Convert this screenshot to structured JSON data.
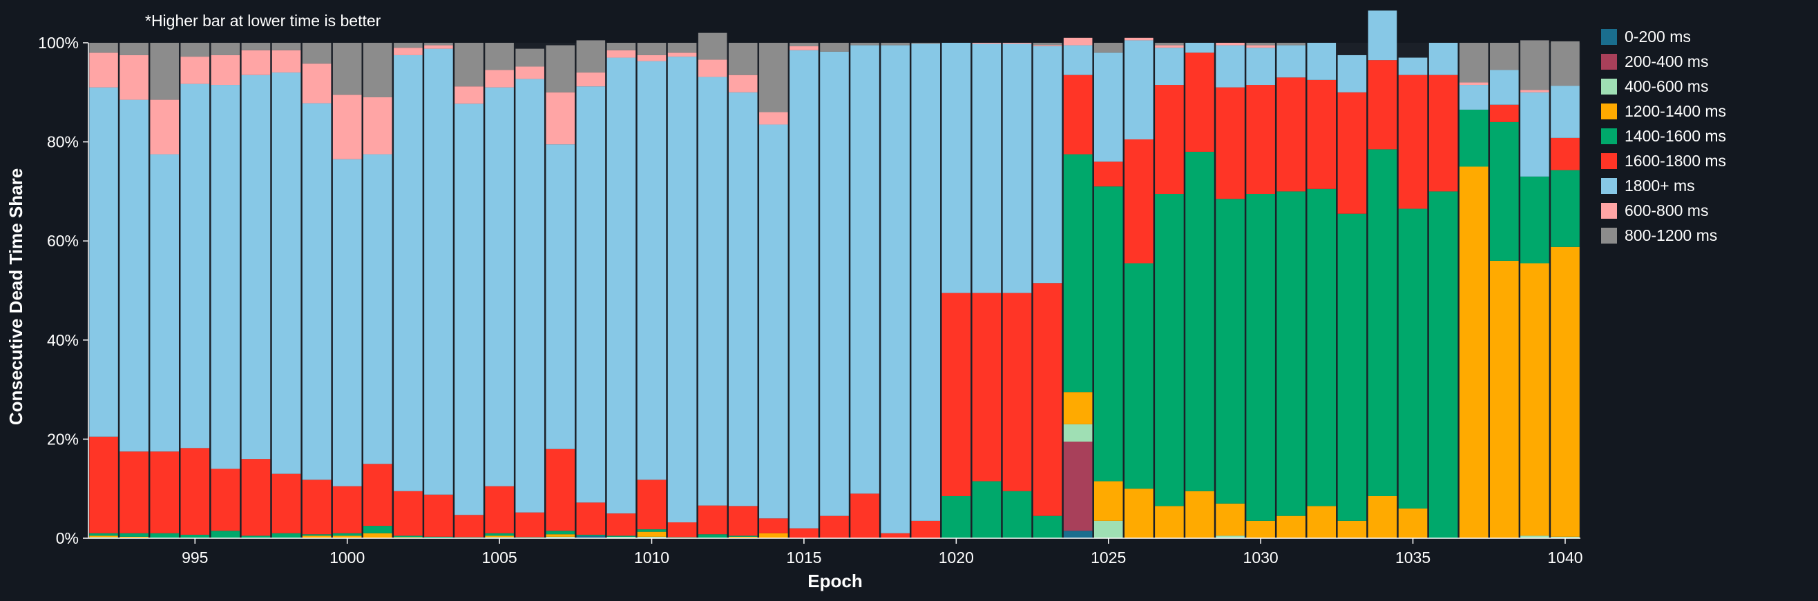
{
  "chart_data": {
    "type": "bar",
    "stacked": true,
    "annotation": "*Higher bar at lower time is better",
    "xlabel": "Epoch",
    "ylabel": "Consecutive Dead Time Share",
    "ylim": [
      0,
      100
    ],
    "y_ticks": [
      0,
      20,
      40,
      60,
      80,
      100
    ],
    "y_tick_labels": [
      "0%",
      "20%",
      "40%",
      "60%",
      "80%",
      "100%"
    ],
    "x_ticks": [
      995,
      1000,
      1005,
      1010,
      1015,
      1020,
      1025,
      1030,
      1035,
      1040
    ],
    "x_tick_labels": [
      "995",
      "1000",
      "1005",
      "1010",
      "1015",
      "1020",
      "1025",
      "1030",
      "1035",
      "1040"
    ],
    "grid": false,
    "legend_position": "right",
    "categories": [
      992,
      993,
      994,
      995,
      996,
      997,
      998,
      999,
      1000,
      1001,
      1002,
      1003,
      1004,
      1005,
      1006,
      1007,
      1008,
      1009,
      1010,
      1011,
      1012,
      1013,
      1014,
      1015,
      1016,
      1017,
      1018,
      1019,
      1020,
      1021,
      1022,
      1023,
      1024,
      1025,
      1026,
      1027,
      1028,
      1029,
      1030,
      1031,
      1032,
      1033,
      1034,
      1035,
      1036,
      1037,
      1038,
      1039,
      1040
    ],
    "series": [
      {
        "name": "0-200 ms",
        "color": "#1a6e8e",
        "values": [
          0,
          0,
          0,
          0,
          0,
          0,
          0,
          0,
          0,
          0,
          0,
          0,
          0,
          0,
          0,
          0,
          0.5,
          0,
          0,
          0,
          0,
          0,
          0,
          0,
          0,
          0,
          0,
          0,
          0,
          0,
          0,
          0,
          1.5,
          0,
          0,
          0,
          0,
          0,
          0,
          0,
          0,
          0,
          0,
          0,
          0,
          0,
          0,
          0,
          0
        ]
      },
      {
        "name": "200-400 ms",
        "color": "#a8405a",
        "values": [
          0,
          0,
          0,
          0,
          0,
          0,
          0,
          0,
          0,
          0,
          0,
          0,
          0,
          0,
          0,
          0,
          0,
          0,
          0,
          0,
          0,
          0,
          0,
          0,
          0,
          0,
          0,
          0,
          0,
          0,
          0,
          0,
          18,
          0,
          0,
          0,
          0,
          0,
          0,
          0,
          0,
          0,
          0,
          0,
          0,
          0,
          0,
          0,
          0
        ]
      },
      {
        "name": "400-600 ms",
        "color": "#9fdfb4",
        "values": [
          0.2,
          0,
          0,
          0,
          0,
          0,
          0,
          0,
          0,
          0,
          0,
          0,
          0,
          0.2,
          0,
          0.3,
          0,
          0.3,
          0.3,
          0,
          0,
          0,
          0,
          0,
          0,
          0,
          0,
          0,
          0,
          0,
          0,
          0,
          3.5,
          3.5,
          0,
          0,
          0,
          0.5,
          0,
          0,
          0,
          0,
          0,
          0,
          0,
          0,
          0,
          0.5,
          0.3
        ]
      },
      {
        "name": "1200-1400 ms",
        "color": "#ffaa00",
        "values": [
          0.3,
          0.3,
          0,
          0,
          0,
          0,
          0,
          0.5,
          0.5,
          1,
          0.2,
          0,
          0,
          0.3,
          0,
          0.5,
          0,
          0,
          1,
          0,
          0,
          0.3,
          1,
          0,
          0,
          0,
          0,
          0,
          0,
          0,
          0,
          0,
          6.5,
          8,
          10,
          6.5,
          9.5,
          6.5,
          3.5,
          4.5,
          6.5,
          3.5,
          8.5,
          6,
          0,
          75,
          56,
          55,
          58.5
        ]
      },
      {
        "name": "1400-1600 ms",
        "color": "#00a86b",
        "values": [
          0.5,
          0.7,
          1,
          0.7,
          1.5,
          0.5,
          1,
          0.3,
          0.5,
          1.5,
          0.3,
          0.3,
          0.2,
          0.5,
          0.2,
          0.7,
          0.2,
          0.2,
          0.5,
          0.2,
          0.8,
          0.2,
          0,
          0,
          0,
          0,
          0,
          0,
          8.5,
          11.5,
          9.5,
          4.5,
          48,
          59.5,
          45.5,
          63,
          68.5,
          61.5,
          66,
          65.5,
          64,
          62,
          70,
          60.5,
          70,
          11.5,
          28,
          17.5,
          15.5
        ]
      },
      {
        "name": "1600-1800 ms",
        "color": "#ff3526",
        "values": [
          19.5,
          16.5,
          16.5,
          17.5,
          12.5,
          15.5,
          12,
          11,
          9.5,
          12.5,
          9,
          8.5,
          4.5,
          9.5,
          5,
          16.5,
          6.5,
          4.5,
          10,
          3,
          5.8,
          6,
          3,
          2,
          4.5,
          9,
          1,
          3.5,
          41,
          38,
          40,
          47,
          16,
          5,
          25,
          22,
          20,
          22.5,
          22,
          23,
          22,
          24.5,
          18,
          27,
          23.5,
          0,
          3.5,
          0,
          6.5
        ]
      },
      {
        "name": "1800+ ms",
        "color": "#87c8e6",
        "values": [
          70.5,
          71,
          60,
          73.5,
          77.5,
          77.5,
          81,
          76,
          66,
          62.5,
          88,
          90,
          83,
          80.5,
          87.5,
          61.5,
          84,
          92,
          84.5,
          94,
          86.5,
          83.5,
          79.5,
          96.5,
          93.7,
          90.5,
          98.5,
          96.3,
          50.5,
          50.3,
          50.3,
          47.8,
          6,
          22,
          20,
          7.5,
          2,
          8.5,
          7.5,
          6.5,
          7.5,
          7.5,
          10,
          3.5,
          6.5,
          5,
          7,
          17,
          10.5
        ]
      },
      {
        "name": "600-800 ms",
        "color": "#ffa5a5",
        "values": [
          7,
          9,
          11,
          5.5,
          6,
          5,
          4.5,
          8,
          13,
          11.5,
          1.5,
          0.7,
          3.5,
          3.5,
          2.5,
          10.5,
          2.8,
          1.5,
          1.2,
          0.8,
          3.5,
          3.5,
          2.5,
          0.8,
          0,
          0,
          0,
          0,
          0,
          0.2,
          0.2,
          0.2,
          1.5,
          0,
          0.5,
          0.5,
          0,
          0.5,
          0.5,
          0,
          0,
          0,
          0,
          0,
          0,
          0.5,
          0,
          0.5,
          0
        ]
      },
      {
        "name": "800-1200 ms",
        "color": "#8c8c8c",
        "values": [
          2,
          2.5,
          11.5,
          2.8,
          2.5,
          1.5,
          1.5,
          4.2,
          10.5,
          11,
          1,
          0.5,
          8.8,
          5.5,
          3.6,
          9.5,
          6.5,
          1.5,
          2.5,
          2,
          5.4,
          6.5,
          14,
          0.7,
          1.8,
          0.5,
          0.5,
          0.2,
          0,
          0,
          0,
          0.5,
          0,
          2,
          0,
          0.5,
          0,
          0,
          0.5,
          0.5,
          0,
          0,
          0,
          0,
          0,
          8,
          5.5,
          10,
          9
        ]
      }
    ]
  }
}
